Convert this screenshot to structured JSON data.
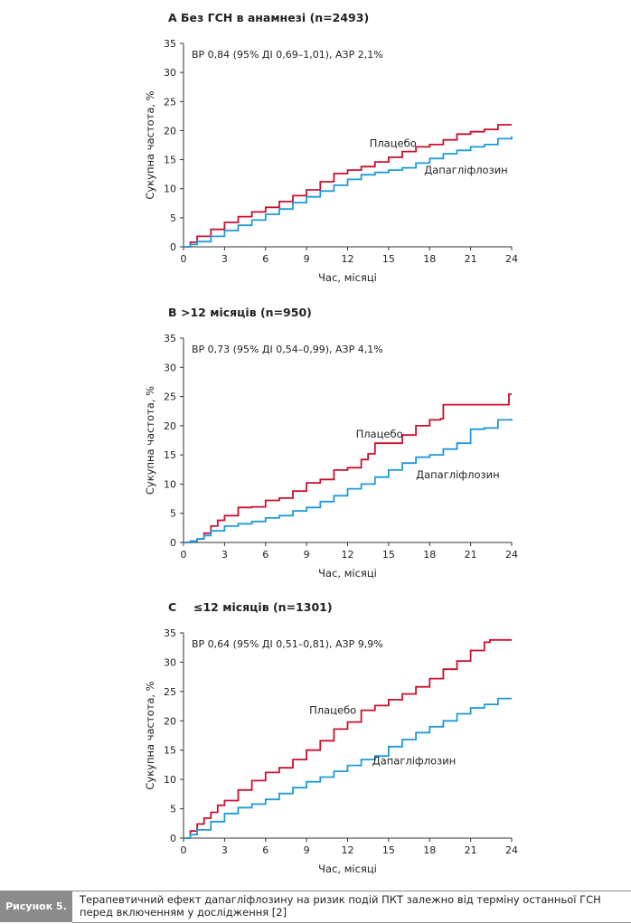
{
  "chart_data": [
    {
      "type": "line",
      "panel_letter": "A",
      "title": "Без ГСН в анамнезі (n=2493)",
      "annotation": "ВР 0,84 (95% ДІ 0,69–1,01), АЗР 2,1%",
      "xlabel": "Час, місяці",
      "ylabel": "Сукупна частота, %",
      "xlim": [
        0,
        24
      ],
      "ylim": [
        0,
        35
      ],
      "xticks": [
        0,
        3,
        6,
        9,
        12,
        15,
        18,
        21,
        24
      ],
      "yticks": [
        0,
        5,
        10,
        15,
        20,
        25,
        30,
        35
      ],
      "series": [
        {
          "name": "Плацебо",
          "color": "#c8102e",
          "x": [
            0,
            0.5,
            1,
            2,
            3,
            4,
            5,
            6,
            7,
            8,
            9,
            10,
            11,
            12,
            13,
            14,
            15,
            16,
            17,
            18,
            19,
            20,
            21,
            22,
            23,
            24
          ],
          "y": [
            0,
            0.8,
            1.8,
            3.0,
            4.2,
            5.2,
            6.0,
            6.8,
            7.8,
            8.8,
            9.8,
            11.2,
            12.6,
            13.2,
            13.8,
            14.6,
            15.4,
            16.4,
            17.2,
            17.6,
            18.4,
            19.4,
            19.8,
            20.2,
            21.0,
            21.0
          ],
          "label_x": 13.6,
          "label_y": 17.2
        },
        {
          "name": "Дапагліфлозин",
          "color": "#1f9ad6",
          "x": [
            0,
            0.5,
            1,
            2,
            3,
            4,
            5,
            6,
            7,
            8,
            9,
            10,
            11,
            12,
            13,
            14,
            15,
            16,
            17,
            18,
            19,
            20,
            21,
            22,
            23,
            24
          ],
          "y": [
            0,
            0.4,
            0.9,
            1.8,
            2.8,
            3.7,
            4.6,
            5.6,
            6.5,
            7.6,
            8.6,
            9.6,
            10.6,
            11.6,
            12.4,
            12.8,
            13.2,
            13.6,
            14.4,
            15.2,
            16.0,
            16.6,
            17.2,
            17.6,
            18.6,
            19.0
          ],
          "label_x": 17.6,
          "label_y": 12.6
        }
      ]
    },
    {
      "type": "line",
      "panel_letter": "B",
      "title": ">12 місяців (n=950)",
      "annotation": "ВР 0,73 (95% ДІ 0,54–0,99), АЗР 4,1%",
      "xlabel": "Час, місяці",
      "ylabel": "Сукупна частота, %",
      "xlim": [
        0,
        24
      ],
      "ylim": [
        0,
        35
      ],
      "xticks": [
        0,
        3,
        6,
        9,
        12,
        15,
        18,
        21,
        24
      ],
      "yticks": [
        0,
        5,
        10,
        15,
        20,
        25,
        30,
        35
      ],
      "series": [
        {
          "name": "Плацебо",
          "color": "#c8102e",
          "x": [
            0,
            0.5,
            1,
            1.5,
            2,
            2.5,
            3,
            4,
            5,
            6,
            7,
            8,
            9,
            10,
            11,
            12,
            13,
            13.5,
            14,
            15,
            16,
            17,
            18,
            18.8,
            19,
            20,
            21,
            22,
            23,
            23.8,
            24
          ],
          "y": [
            0,
            0.2,
            0.6,
            1.6,
            2.8,
            3.8,
            4.6,
            6.0,
            6.1,
            7.2,
            7.6,
            8.8,
            10.2,
            10.8,
            12.4,
            12.8,
            14.2,
            15.2,
            17.0,
            17.0,
            18.4,
            20.0,
            21.0,
            21.2,
            23.6,
            23.6,
            23.6,
            23.6,
            23.6,
            25.4,
            25.4
          ],
          "label_x": 12.6,
          "label_y": 18.0
        },
        {
          "name": "Дапагліфлозин",
          "color": "#1f9ad6",
          "x": [
            0,
            0.5,
            1,
            1.5,
            2,
            3,
            4,
            5,
            6,
            7,
            8,
            9,
            10,
            11,
            12,
            13,
            14,
            15,
            16,
            17,
            18,
            19,
            20,
            21,
            22,
            23,
            24
          ],
          "y": [
            0,
            0.2,
            0.6,
            1.2,
            2.0,
            2.8,
            3.2,
            3.6,
            4.2,
            4.6,
            5.4,
            6.0,
            7.0,
            8.0,
            9.2,
            10.0,
            11.2,
            12.4,
            13.6,
            14.6,
            15.0,
            16.0,
            17.0,
            19.4,
            19.6,
            21.0,
            21.2
          ],
          "label_x": 17.0,
          "label_y": 11.0
        }
      ]
    },
    {
      "type": "line",
      "panel_letter": "C",
      "title": "≤12 місяців (n=1301)",
      "annotation": "ВР 0,64 (95% ДІ 0,51–0,81), АЗР 9,9%",
      "xlabel": "Час, місяці",
      "ylabel": "Сукупна частота, %",
      "xlim": [
        0,
        24
      ],
      "ylim": [
        0,
        35
      ],
      "xticks": [
        0,
        3,
        6,
        9,
        12,
        15,
        18,
        21,
        24
      ],
      "yticks": [
        0,
        5,
        10,
        15,
        20,
        25,
        30,
        35
      ],
      "series": [
        {
          "name": "Плацебо",
          "color": "#c8102e",
          "x": [
            0,
            0.5,
            1,
            1.5,
            2,
            2.5,
            3,
            4,
            5,
            6,
            7,
            8,
            9,
            10,
            11,
            12,
            13,
            14,
            15,
            16,
            17,
            18,
            19,
            20,
            21,
            22,
            22.4,
            23,
            24
          ],
          "y": [
            0,
            1.2,
            2.4,
            3.4,
            4.4,
            5.6,
            6.4,
            8.2,
            9.8,
            11.2,
            12.0,
            13.4,
            15.0,
            16.6,
            18.6,
            19.8,
            21.8,
            22.6,
            23.6,
            24.6,
            25.8,
            27.2,
            28.8,
            30.2,
            32.0,
            33.4,
            33.8,
            33.8,
            33.8
          ],
          "label_x": 9.2,
          "label_y": 21.2
        },
        {
          "name": "Дапагліфлозин",
          "color": "#1f9ad6",
          "x": [
            0,
            0.5,
            1,
            2,
            3,
            4,
            5,
            6,
            7,
            8,
            9,
            10,
            11,
            12,
            13,
            14,
            15,
            16,
            17,
            18,
            19,
            20,
            21,
            22,
            23,
            24
          ],
          "y": [
            0,
            0.6,
            1.4,
            2.8,
            4.2,
            5.2,
            5.8,
            6.6,
            7.6,
            8.6,
            9.6,
            10.4,
            11.4,
            12.4,
            13.4,
            14.0,
            15.6,
            16.8,
            18.0,
            19.0,
            20.0,
            21.2,
            22.2,
            22.8,
            23.8,
            23.8
          ],
          "label_x": 13.8,
          "label_y": 12.6
        }
      ]
    }
  ],
  "caption": {
    "label": "Рисунок 5.",
    "text": "Терапевтичний ефект дапагліфлозину на ризик подій ПКТ залежно від терміну останньої ГСН перед включенням у дослідження [2]"
  }
}
